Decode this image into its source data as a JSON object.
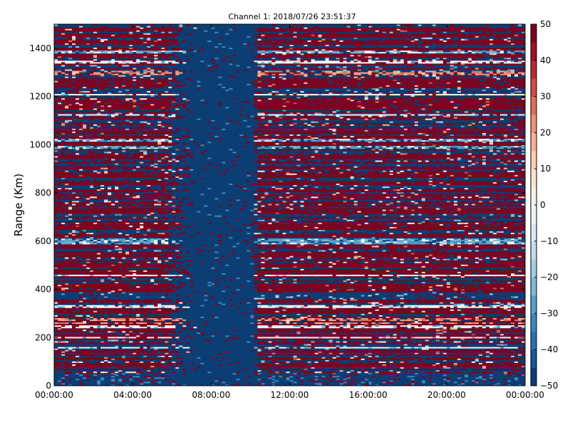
{
  "chart_data": {
    "type": "heatmap",
    "title": "Channel 1: 2018/07/26 23:51:37",
    "xlabel": "",
    "ylabel": "Range (Km)",
    "x_tick_labels": [
      "00:00:00",
      "04:00:00",
      "08:00:00",
      "12:00:00",
      "16:00:00",
      "20:00:00",
      "00:00:00"
    ],
    "x_range_hours": [
      0,
      24
    ],
    "y_ticks": [
      0,
      200,
      400,
      600,
      800,
      1000,
      1200,
      1400
    ],
    "ylim": [
      0,
      1500
    ],
    "colorbar": {
      "ticks": [
        50,
        40,
        30,
        20,
        10,
        0,
        -10,
        -20,
        -30,
        -40,
        -50
      ],
      "tick_labels": [
        "50",
        "40",
        "30",
        "20",
        "10",
        "0",
        "−10",
        "−20",
        "−30",
        "−40",
        "−50"
      ],
      "range": [
        -50,
        50
      ],
      "colormap": "RdBu_r",
      "levels": 20
    },
    "colors": {
      "high": "#67001f",
      "low": "#053061",
      "mid": "#f7f7f7"
    },
    "features": {
      "quiet_band_hours": [
        7.2,
        10.2
      ],
      "scattered_edge_hours": [
        5.8,
        10.4
      ],
      "near_white_rows_km": [
        1345,
        1210,
        1125,
        460,
        330,
        245,
        200,
        158
      ],
      "light_blue_rows_km": [
        1385,
        1020,
        990,
        610,
        600,
        590
      ],
      "pink_rows_km": [
        1305,
        1295,
        275,
        260
      ]
    }
  }
}
